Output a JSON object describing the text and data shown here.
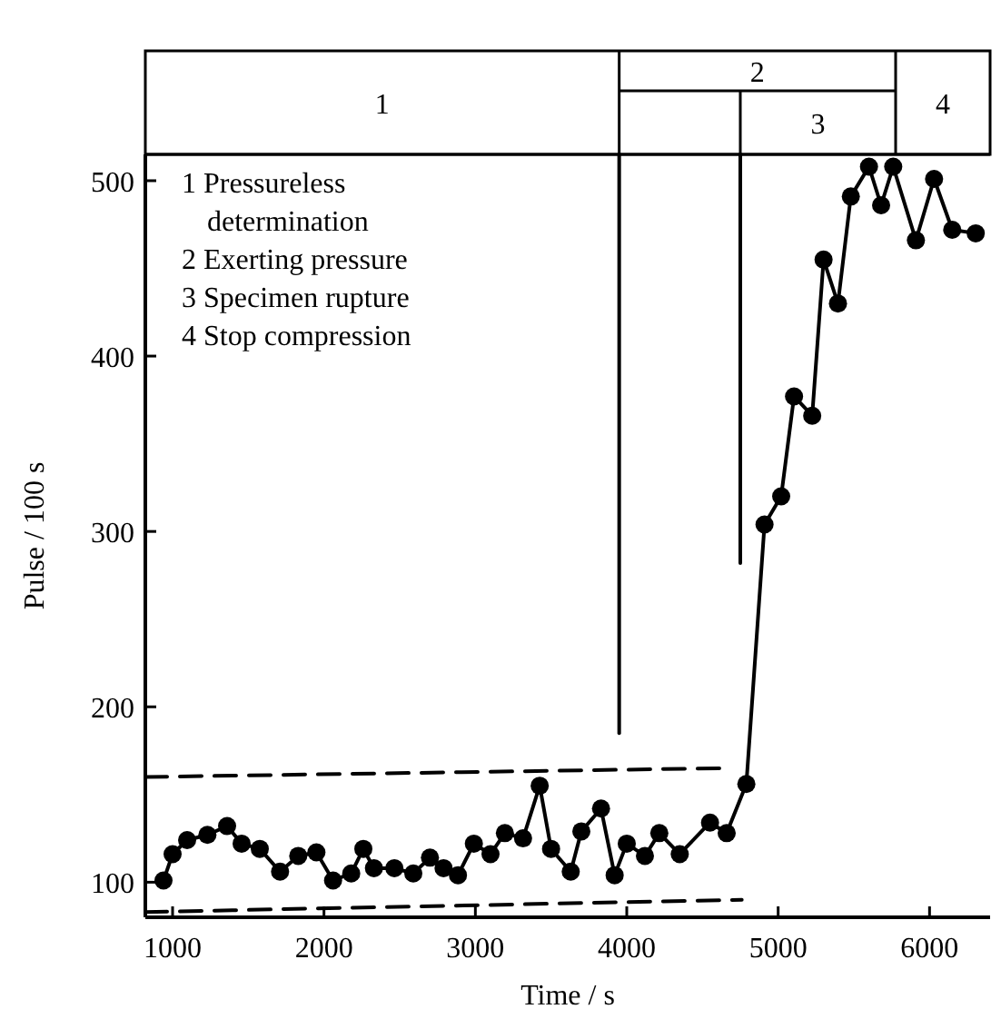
{
  "chart_data": {
    "type": "line",
    "xlabel": "Time / s",
    "ylabel": "Pulse / 100 s",
    "xlim": [
      820,
      6400
    ],
    "xticks": [
      1000,
      2000,
      3000,
      4000,
      5000,
      6000
    ],
    "ylim": [
      80,
      515
    ],
    "yticks": [
      100,
      200,
      300,
      400,
      500
    ],
    "grid": false,
    "annotations": [
      "1 Pressureless\ndetermination",
      "2 Exerting pressure",
      "3 Specimen rupture",
      "4 Stop compression",
      "1",
      "2",
      "3",
      "4"
    ],
    "series": [
      {
        "color": "#000000",
        "marker": "circle",
        "line_style": "solid",
        "x": [
          940,
          1000,
          1096,
          1230,
          1360,
          1456,
          1576,
          1710,
          1830,
          1950,
          2060,
          2180,
          2260,
          2330,
          2465,
          2590,
          2700,
          2790,
          2885,
          2990,
          3100,
          3195,
          3315,
          3425,
          3500,
          3630,
          3700,
          3830,
          3920,
          4000,
          4120,
          4215,
          4350,
          4550,
          4660,
          4790,
          4910,
          5020,
          5105,
          5225,
          5300,
          5395,
          5480,
          5600,
          5680,
          5760,
          5910,
          6030,
          6150,
          6305
        ],
        "values": [
          101,
          116,
          124,
          127,
          132,
          122,
          119,
          106,
          115,
          117,
          101,
          105,
          119,
          108,
          108,
          105,
          114,
          108,
          104,
          122,
          116,
          128,
          125,
          155,
          119,
          106,
          129,
          142,
          104,
          122,
          115,
          128,
          116,
          134,
          128,
          156,
          304,
          320,
          377,
          366,
          455,
          430,
          491,
          508,
          486,
          508,
          466,
          501,
          472,
          470
        ]
      },
      {
        "color": "#000000",
        "marker": "none",
        "line_style": "dashed",
        "x": [
          820,
          4620
        ],
        "values": [
          160,
          165
        ]
      },
      {
        "color": "#000000",
        "marker": "none",
        "line_style": "dashed",
        "x": [
          820,
          4760
        ],
        "values": [
          83,
          90
        ]
      },
      {
        "color": "#000000",
        "marker": "none",
        "line_style": "solid",
        "x": [
          3950,
          3950
        ],
        "values": [
          515,
          185
        ]
      },
      {
        "color": "#000000",
        "marker": "none",
        "line_style": "solid",
        "x": [
          4750,
          4750
        ],
        "values": [
          515,
          282
        ]
      }
    ]
  }
}
